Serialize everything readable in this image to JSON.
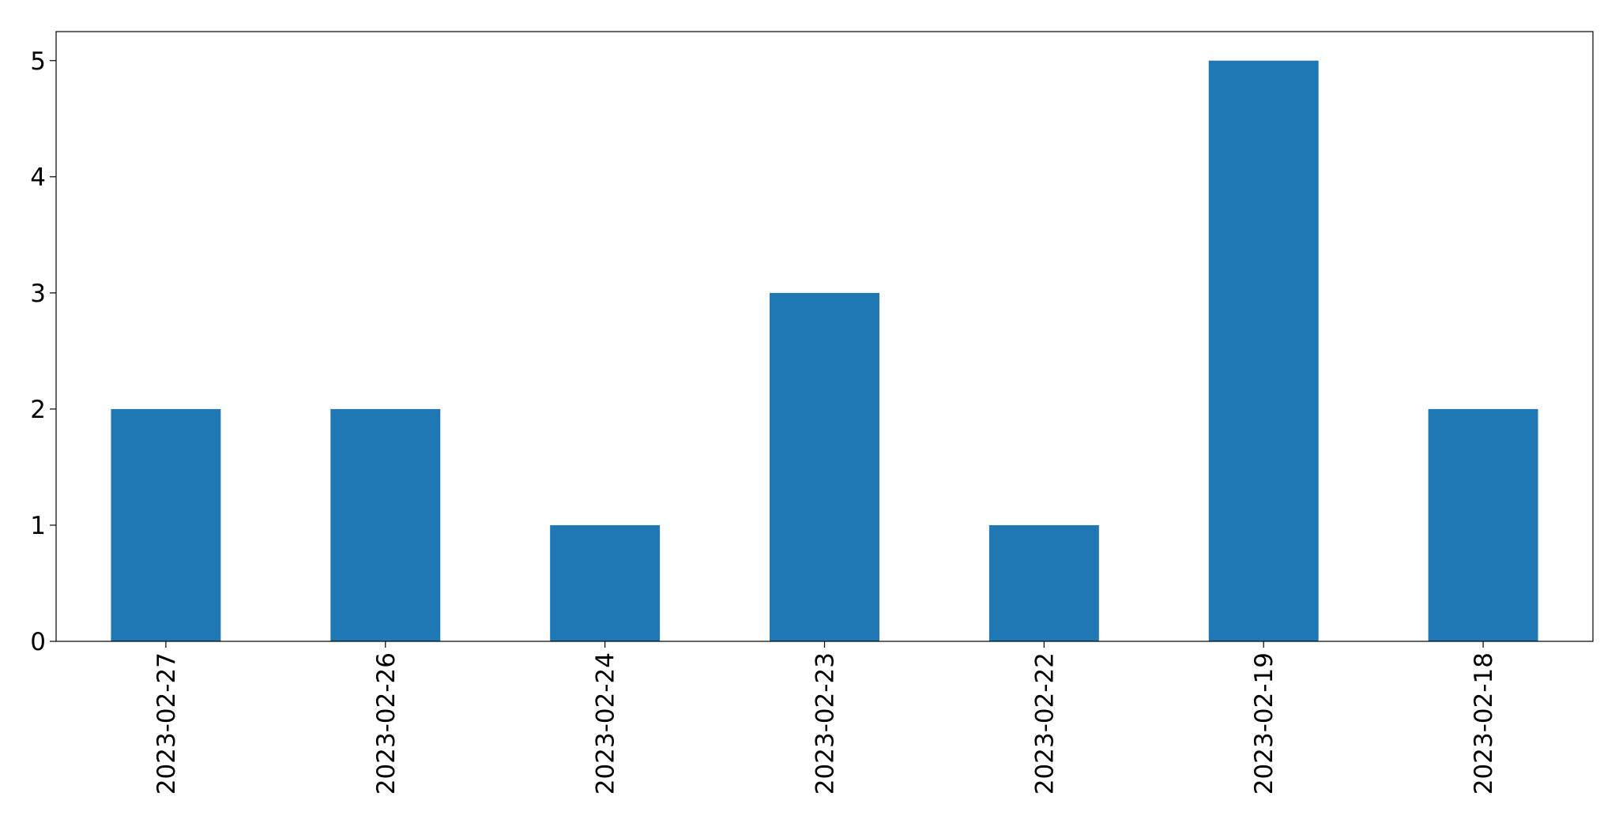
{
  "chart_data": {
    "type": "bar",
    "categories": [
      "2023-02-27",
      "2023-02-26",
      "2023-02-24",
      "2023-02-23",
      "2023-02-22",
      "2023-02-19",
      "2023-02-18"
    ],
    "values": [
      2,
      2,
      1,
      3,
      1,
      5,
      2
    ],
    "yticks": [
      "0",
      "1",
      "2",
      "3",
      "4",
      "5"
    ],
    "ylim": [
      0,
      5.25
    ],
    "title": "",
    "xlabel": "",
    "ylabel": "",
    "grid": false,
    "bar_color": "#1f77b4"
  }
}
